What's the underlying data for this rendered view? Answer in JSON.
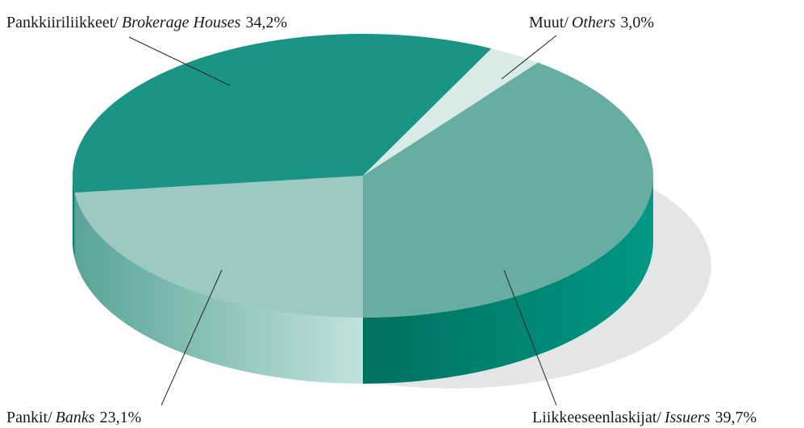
{
  "chart_data": {
    "type": "pie",
    "categories": [
      "Pankit/",
      "Pankkiiriliikkeet/",
      "Muut/",
      "Liikkeeseenlaskijat/"
    ],
    "categories_en": [
      "Banks",
      "Brokerage Houses",
      "Others",
      "Issuers"
    ],
    "values": [
      23.1,
      34.2,
      3.0,
      39.7
    ],
    "value_labels": [
      "23,1%",
      "34,2%",
      "3,0%",
      "39,7%"
    ],
    "colors": [
      "#9dc9c3",
      "#1a9585",
      "#d9ebe7",
      "#67ada2"
    ],
    "side_colors": [
      [
        "#c2e2dd",
        "#58a498"
      ],
      [
        "#0f8a79",
        "#0a7565"
      ],
      [
        "#cfe5e0",
        "#b5d6d0"
      ],
      [
        "#009884",
        "#00705f"
      ]
    ]
  }
}
